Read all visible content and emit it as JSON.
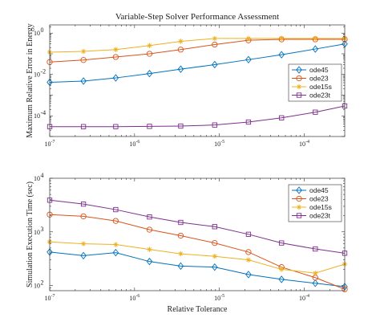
{
  "chart_data": [
    {
      "type": "line",
      "title": "Variable-Step Solver Performance Assessment",
      "xlabel": "",
      "ylabel": "Maximum Relative Error in Energy",
      "xscale": "log",
      "yscale": "log",
      "xlim": [
        1e-07,
        0.0003
      ],
      "ylim": [
        1e-05,
        2.5
      ],
      "x_ticks": [
        1e-07,
        1e-06,
        1e-05,
        0.0001
      ],
      "x_tick_labels": [
        "10",
        "10",
        "10",
        "10"
      ],
      "x_tick_exps": [
        "-7",
        "-6",
        "-5",
        "-4"
      ],
      "y_ticks": [
        0.0001,
        0.01,
        1
      ],
      "y_tick_labels": [
        "10",
        "10",
        "10"
      ],
      "y_tick_exps": [
        "-4",
        "-2",
        "0"
      ],
      "grid": false,
      "legend_position": "right",
      "x": [
        1e-07,
        2.5e-07,
        6e-07,
        1.5e-06,
        3.5e-06,
        8.8e-06,
        2.2e-05,
        5.4e-05,
        0.000135,
        0.0003
      ],
      "series": [
        {
          "name": "ode45",
          "color": "#0072BD",
          "marker": "diamond",
          "values": [
            0.0042,
            0.0048,
            0.0068,
            0.011,
            0.018,
            0.03,
            0.052,
            0.09,
            0.17,
            0.3
          ]
        },
        {
          "name": "ode23",
          "color": "#D95319",
          "marker": "circle",
          "values": [
            0.04,
            0.05,
            0.07,
            0.1,
            0.16,
            0.28,
            0.45,
            0.5,
            0.5,
            0.5
          ]
        },
        {
          "name": "ode15s",
          "color": "#EDB120",
          "marker": "star",
          "values": [
            0.12,
            0.13,
            0.16,
            0.25,
            0.4,
            0.55,
            0.55,
            0.55,
            0.55,
            0.55
          ]
        },
        {
          "name": "ode23t",
          "color": "#7E2F8E",
          "marker": "square",
          "values": [
            3e-05,
            3e-05,
            3e-05,
            3.1e-05,
            3.2e-05,
            3.6e-05,
            5e-05,
            8e-05,
            0.00015,
            0.0003
          ]
        }
      ]
    },
    {
      "type": "line",
      "title": "",
      "xlabel": "Relative Tolerance",
      "ylabel": "Simulation Execution Time (sec)",
      "xscale": "log",
      "yscale": "log",
      "xlim": [
        1e-07,
        0.0003
      ],
      "ylim": [
        80,
        10000
      ],
      "x_ticks": [
        1e-07,
        1e-06,
        1e-05,
        0.0001
      ],
      "x_tick_labels": [
        "10",
        "10",
        "10",
        "10"
      ],
      "x_tick_exps": [
        "-7",
        "-6",
        "-5",
        "-4"
      ],
      "y_ticks": [
        100,
        1000,
        10000
      ],
      "y_tick_labels": [
        "10",
        "10",
        "10"
      ],
      "y_tick_exps": [
        "2",
        "3",
        "4"
      ],
      "grid": false,
      "legend_position": "top-right",
      "x": [
        1e-07,
        2.5e-07,
        6e-07,
        1.5e-06,
        3.5e-06,
        8.8e-06,
        2.2e-05,
        5.4e-05,
        0.000135,
        0.0003
      ],
      "series": [
        {
          "name": "ode45",
          "color": "#0072BD",
          "marker": "diamond",
          "values": [
            420,
            360,
            410,
            280,
            230,
            220,
            160,
            130,
            110,
            95
          ]
        },
        {
          "name": "ode23",
          "color": "#D95319",
          "marker": "circle",
          "values": [
            2100,
            1950,
            1600,
            1100,
            850,
            620,
            420,
            220,
            140,
            85
          ]
        },
        {
          "name": "ode15s",
          "color": "#EDB120",
          "marker": "star",
          "values": [
            650,
            600,
            580,
            470,
            390,
            350,
            300,
            200,
            170,
            250
          ]
        },
        {
          "name": "ode23t",
          "color": "#7E2F8E",
          "marker": "square",
          "values": [
            3900,
            3300,
            2600,
            1900,
            1500,
            1250,
            900,
            620,
            480,
            400
          ]
        }
      ]
    }
  ]
}
